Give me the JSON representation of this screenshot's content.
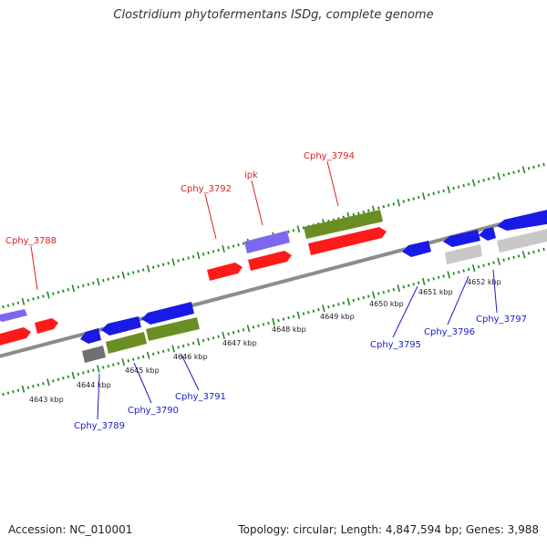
{
  "title": "Clostridium phytofermentans ISDg, complete genome",
  "footer": {
    "accession": "Accession: NC_010001",
    "summary": "Topology: circular; Length: 4,847,594 bp; Genes: 3,988"
  },
  "colors": {
    "backbone": "#8c8c8c",
    "tick": "#1f8a1f",
    "upper_label": "#e02020",
    "lower_label": "#1a1acc",
    "cds_red": "#ff1a1a",
    "cds_blue": "#1a1ae6",
    "cds_olive": "#6b8e23",
    "cds_purple": "#7b68ee",
    "cds_gray": "#707070",
    "cds_light": "#c8c8c8"
  },
  "scale_labels": [
    "4643 kbp",
    "4644 kbp",
    "4645 kbp",
    "4646 kbp",
    "4647 kbp",
    "4648 kbp",
    "4649 kbp",
    "4650 kbp",
    "4651 kbp",
    "4652 kbp"
  ],
  "gene_labels_upper": [
    "Cphy_3788",
    "Cphy_3792",
    "ipk",
    "Cphy_3794"
  ],
  "gene_labels_lower": [
    "Cphy_3789",
    "Cphy_3790",
    "Cphy_3791",
    "Cphy_3795",
    "Cphy_3796",
    "Cphy_3797"
  ]
}
